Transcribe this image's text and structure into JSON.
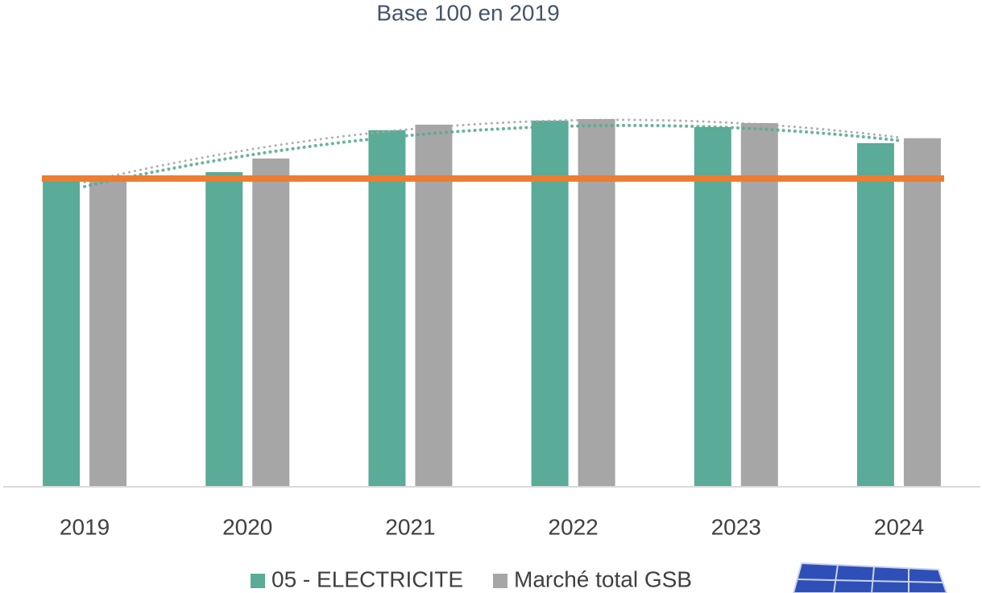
{
  "chart_data": {
    "type": "bar",
    "title": "Base 100 en 2019",
    "categories": [
      "2019",
      "2020",
      "2021",
      "2022",
      "2023",
      "2024"
    ],
    "series": [
      {
        "name": "05 - ELECTRICITE",
        "color": "#5aab97",
        "values": [
          100,
          102.1,
          115.7,
          118.8,
          116.7,
          111.5
        ]
      },
      {
        "name": "Marché total GSB",
        "color": "#a6a6a6",
        "values": [
          100,
          106.5,
          117.5,
          119.3,
          118.0,
          113.1
        ]
      }
    ],
    "reference_line": {
      "value": 100,
      "color": "#ed7d31"
    },
    "trendline": true,
    "ylim": [
      0,
      130
    ],
    "legend": "bottom"
  }
}
